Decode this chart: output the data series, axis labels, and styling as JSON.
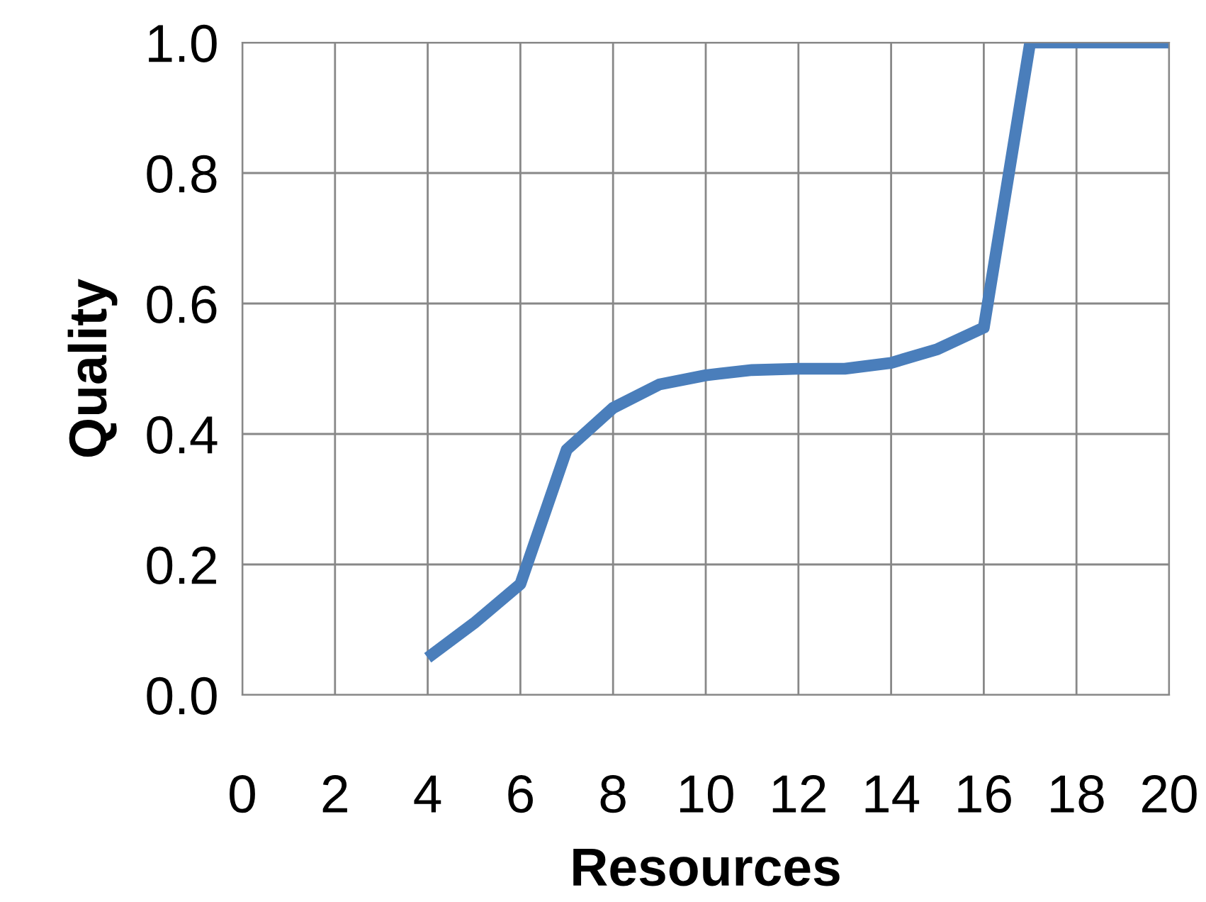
{
  "chart_data": {
    "type": "line",
    "xlabel": "Resources",
    "ylabel": "Quality",
    "x": [
      4,
      5,
      6,
      7,
      8,
      9,
      10,
      11,
      12,
      13,
      14,
      15,
      16,
      17,
      18,
      19,
      20
    ],
    "series": [
      {
        "color": "#4a7ebb",
        "values": [
          0.057,
          0.11,
          0.17,
          0.376,
          0.44,
          0.476,
          0.49,
          0.498,
          0.5,
          0.5,
          0.509,
          0.53,
          0.563,
          1.0,
          1.0,
          1.0,
          1.0
        ]
      }
    ],
    "xlim": [
      0,
      20
    ],
    "xticks": [
      0,
      2,
      4,
      6,
      8,
      10,
      12,
      14,
      16,
      18,
      20
    ],
    "ylim": [
      0,
      1.0
    ],
    "yticks": [
      {
        "value": 0,
        "label": "0.0"
      },
      {
        "value": 0.2,
        "label": "0.2"
      },
      {
        "value": 0.4,
        "label": "0.4"
      },
      {
        "value": 0.6,
        "label": "0.6"
      },
      {
        "value": 0.8,
        "label": "0.8"
      },
      {
        "value": 1.0,
        "label": "1.0"
      }
    ],
    "grid": true,
    "marker": "none",
    "line_style": "solid"
  }
}
